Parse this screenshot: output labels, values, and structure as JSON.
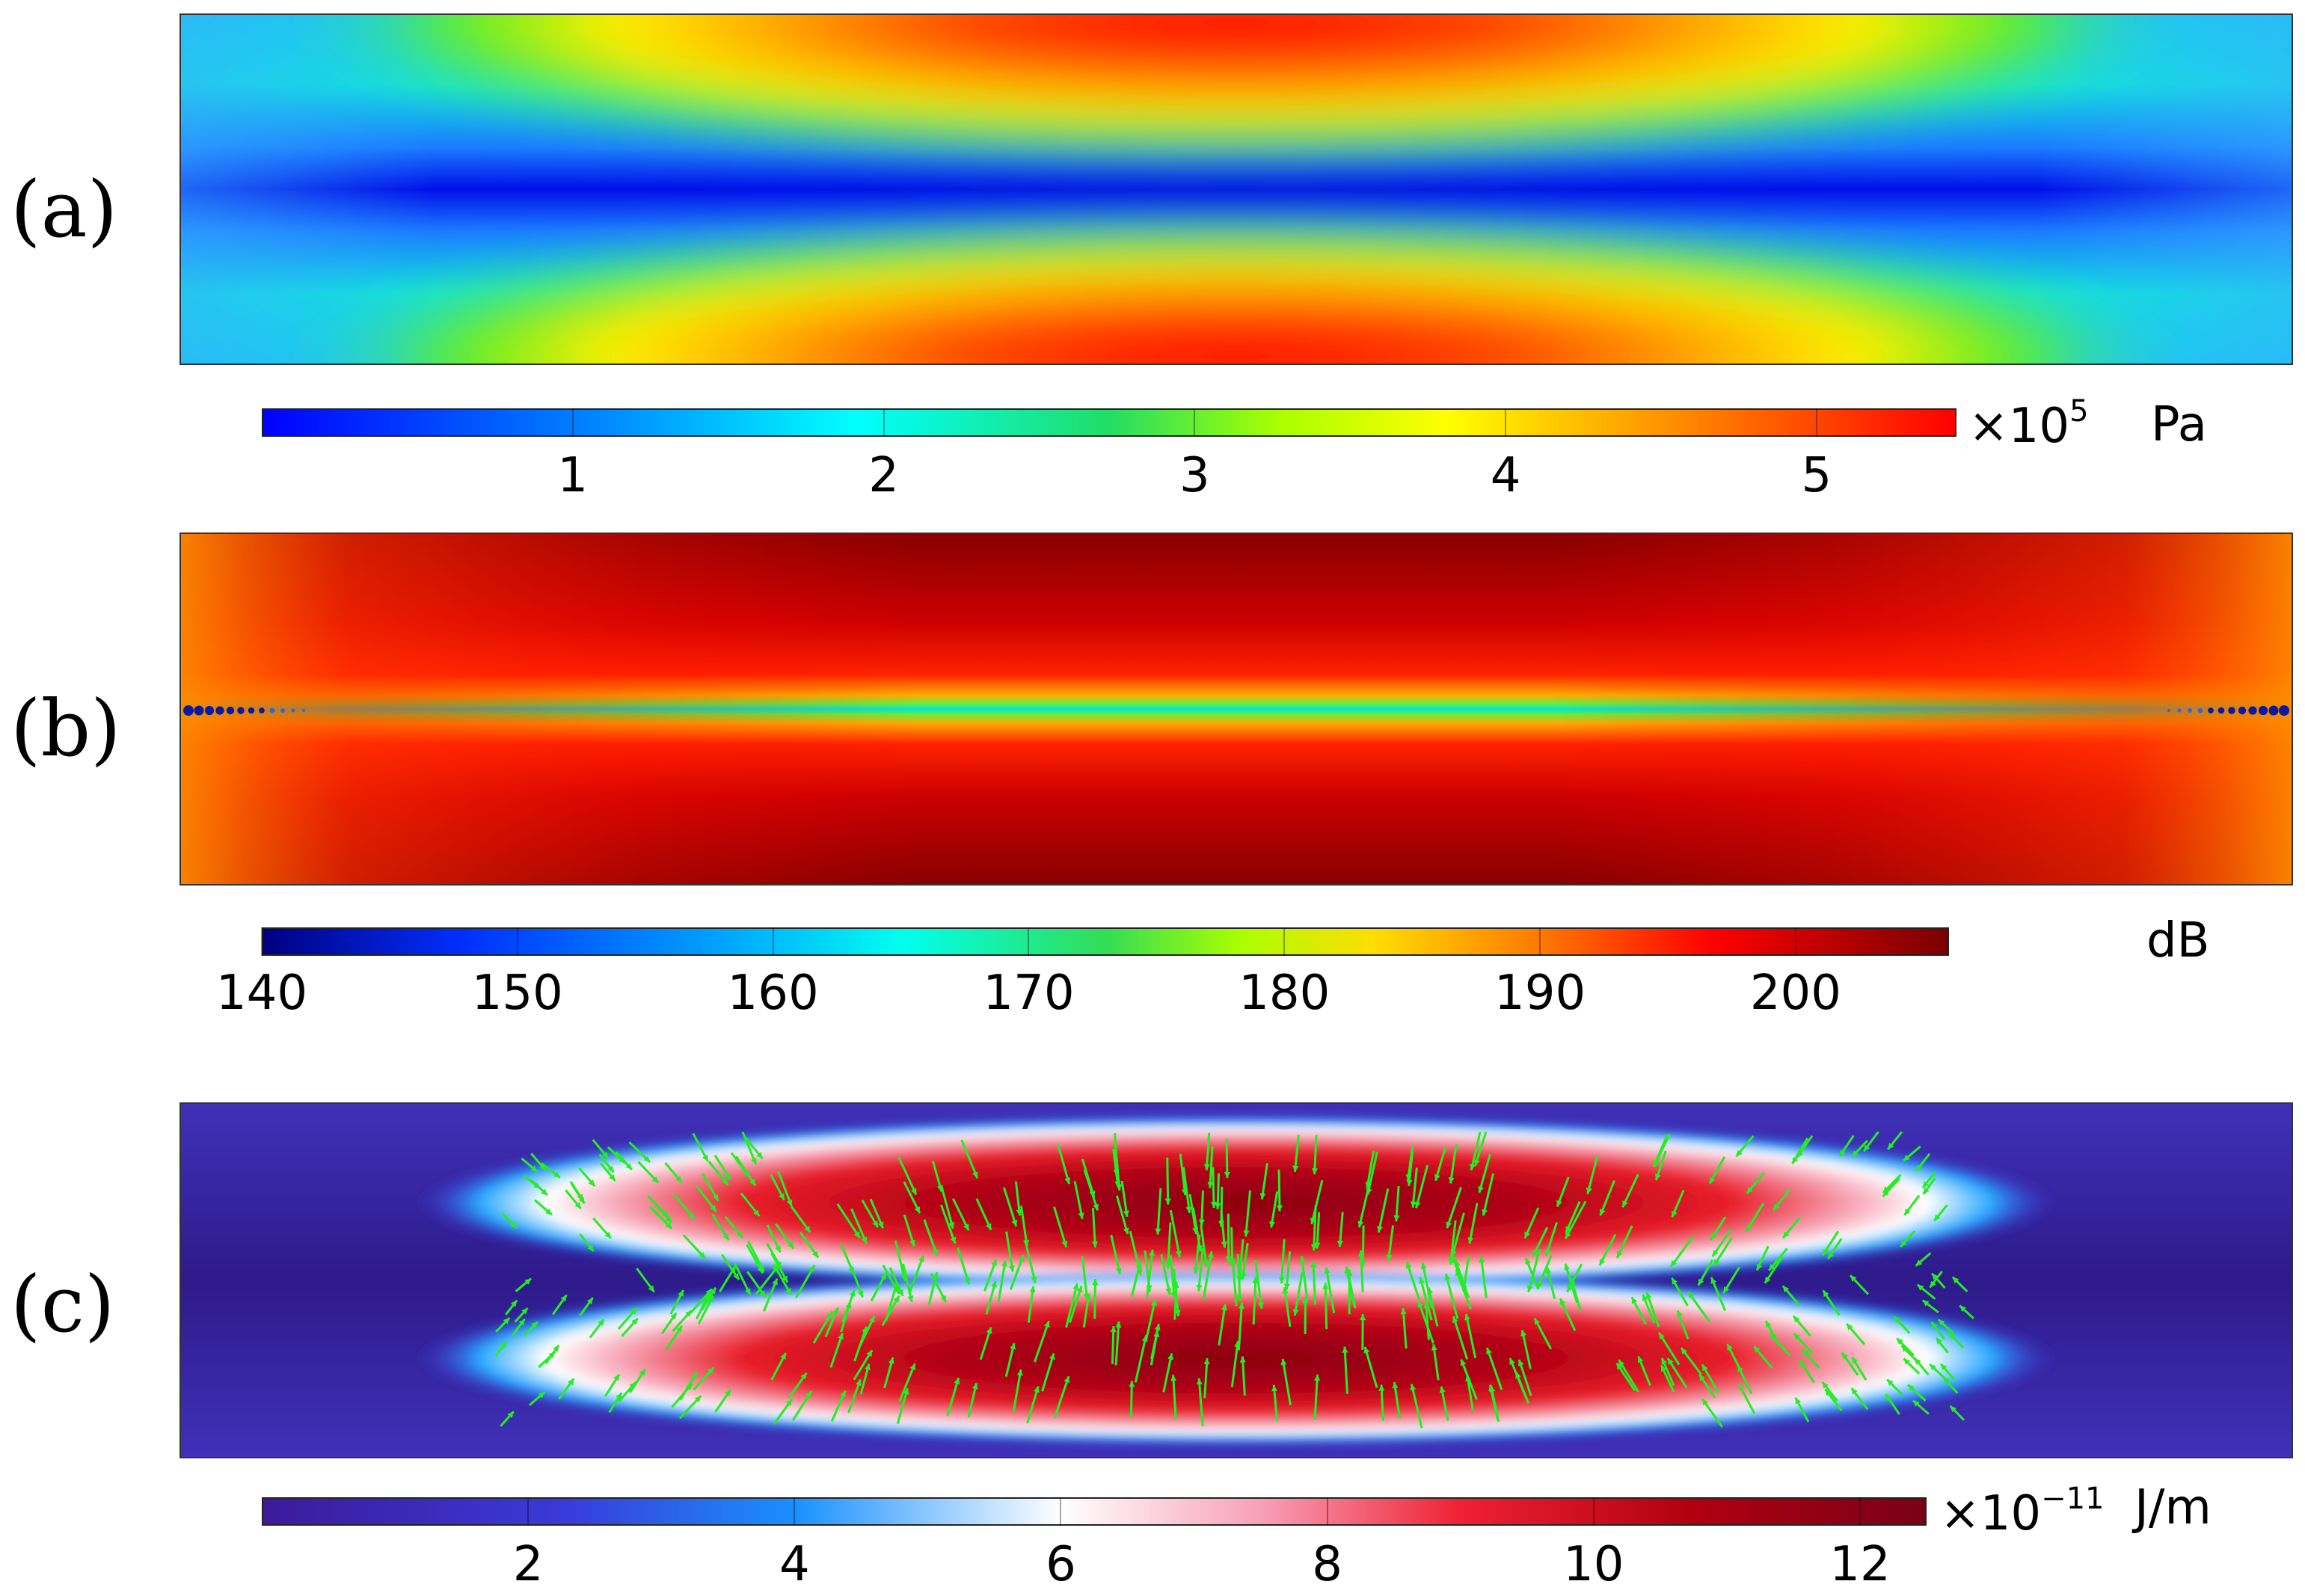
{
  "panels": {
    "a": {
      "label": "(a)",
      "unit_mult": "×10",
      "unit_exp": "5",
      "unit": "Pa",
      "ticks": [
        "1",
        "2",
        "3",
        "4",
        "5"
      ],
      "tick_values": [
        1,
        2,
        3,
        4,
        5
      ],
      "range": [
        0,
        5.45
      ]
    },
    "b": {
      "label": "(b)",
      "unit": "dB",
      "ticks": [
        "140",
        "150",
        "160",
        "170",
        "180",
        "190",
        "200"
      ],
      "tick_values": [
        140,
        150,
        160,
        170,
        180,
        190,
        200
      ],
      "range": [
        140,
        206
      ]
    },
    "c": {
      "label": "(c)",
      "unit_mult": "×10",
      "unit_exp": "−11",
      "unit": "J/m",
      "ticks": [
        "2",
        "4",
        "6",
        "8",
        "10",
        "12"
      ],
      "tick_values": [
        2,
        4,
        6,
        8,
        10,
        12
      ],
      "range": [
        0,
        12.5
      ]
    }
  },
  "colors": {
    "arrow": "#22ee22"
  }
}
